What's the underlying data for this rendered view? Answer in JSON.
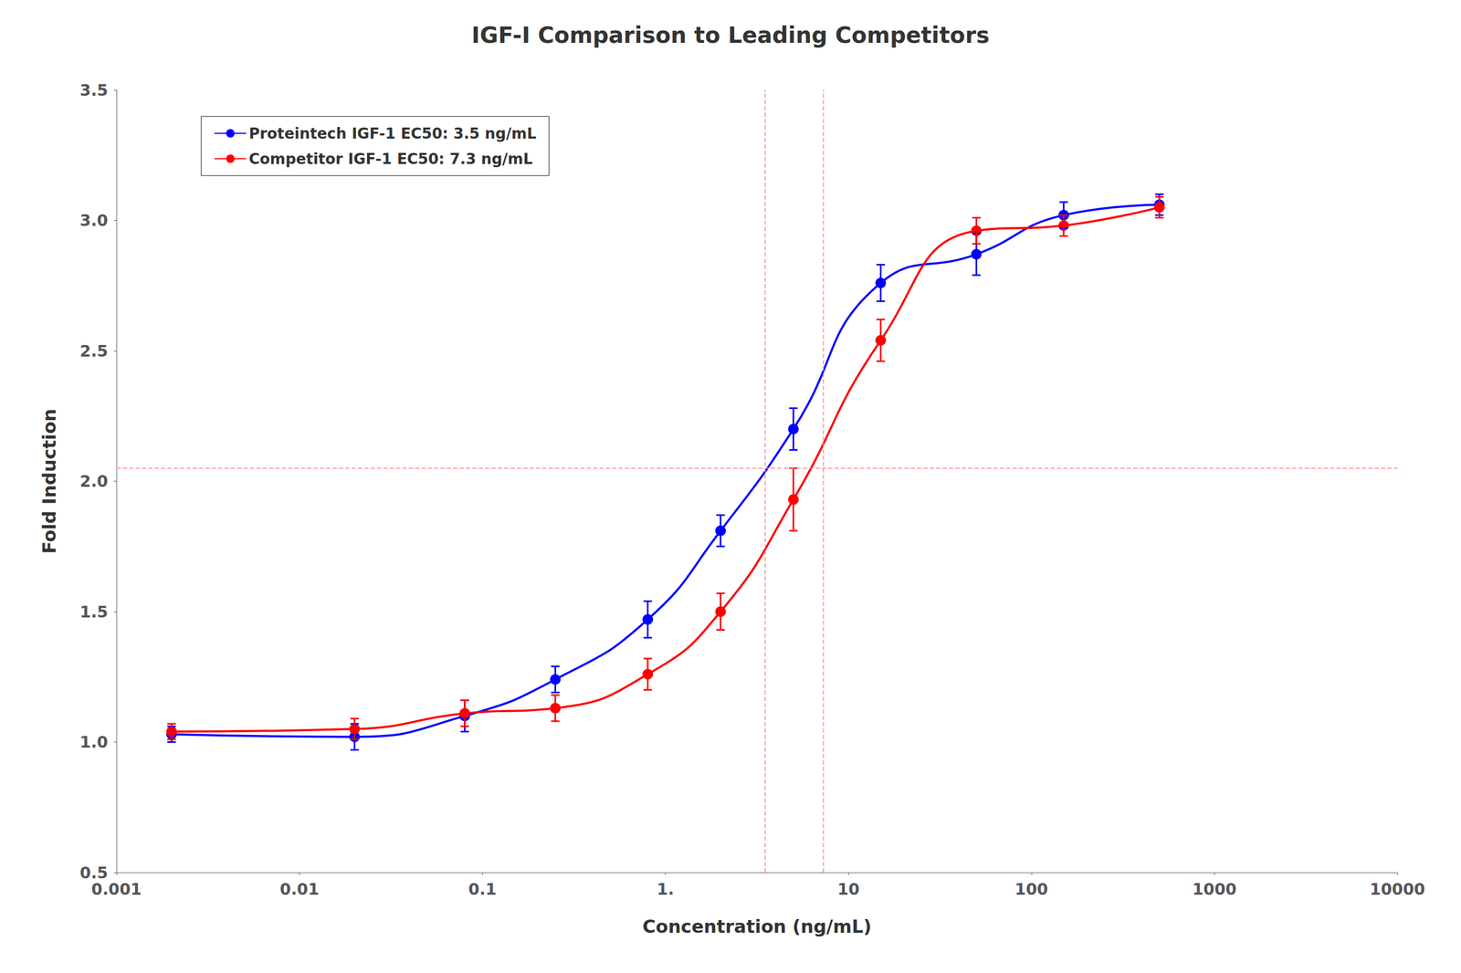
{
  "chart_data": {
    "type": "line",
    "title": "IGF-I Comparison to Leading Competitors",
    "xlabel": "Concentration (ng/mL)",
    "ylabel": "Fold Induction",
    "log": "x",
    "xlim": [
      0.001,
      10000
    ],
    "ylim": [
      0.5,
      3.5
    ],
    "xticks": [
      0.001,
      0.01,
      0.1,
      {
        "value": 1,
        "label": "1."
      },
      10,
      100,
      1000,
      10000
    ],
    "yticks": [
      0.5,
      {
        "value": 1,
        "label": "1.0"
      },
      1.5,
      {
        "value": 2,
        "label": "2.0"
      },
      2.5,
      {
        "value": 3,
        "label": "3.0"
      },
      3.5
    ],
    "grid": false,
    "legend": "upper left",
    "x": [
      0.002,
      0.02,
      0.08,
      0.25,
      0.8,
      2.0,
      5.0,
      15.0,
      50.0,
      150.0,
      500.0
    ],
    "series": [
      {
        "name": "Proteintech IGF-1 EC50: 3.5 ng/mL",
        "color": "#0000ff",
        "marker": "circle",
        "values": [
          1.03,
          1.02,
          1.1,
          1.24,
          1.47,
          1.81,
          2.2,
          2.76,
          2.87,
          3.02,
          3.06
        ],
        "yerr": [
          0.03,
          0.05,
          0.06,
          0.05,
          0.07,
          0.06,
          0.08,
          0.07,
          0.08,
          0.05,
          0.04
        ]
      },
      {
        "name": "Competitor IGF-1 EC50: 7.3 ng/mL",
        "color": "#ff0000",
        "marker": "circle",
        "values": [
          1.04,
          1.05,
          1.11,
          1.13,
          1.26,
          1.5,
          1.93,
          2.54,
          2.96,
          2.98,
          3.05
        ],
        "yerr": [
          0.03,
          0.04,
          0.05,
          0.05,
          0.06,
          0.07,
          0.12,
          0.08,
          0.05,
          0.04,
          0.04
        ]
      }
    ],
    "reference_lines": {
      "color": "#ff8888",
      "x": [
        3.5,
        7.3
      ],
      "y": [
        2.05
      ]
    }
  }
}
